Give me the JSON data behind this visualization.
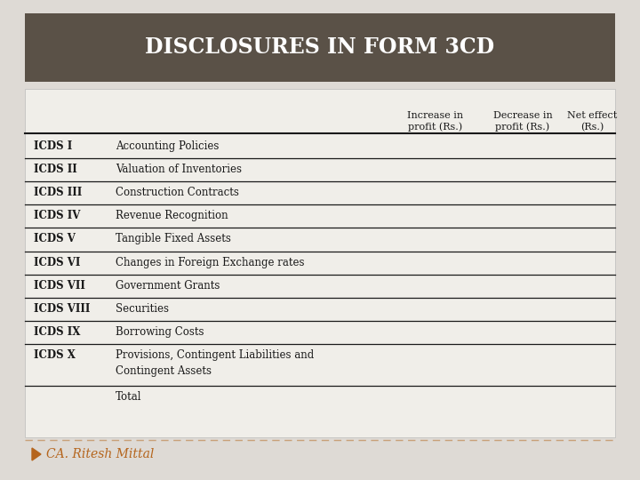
{
  "title": "DISCLOSURES IN FORM 3CD",
  "title_bg": "#5a5147",
  "title_color": "#ffffff",
  "bg_color": "#dedad5",
  "table_bg": "#f0eee9",
  "col_headers": [
    "Increase in\nprofit (Rs.)",
    "Decrease in\nprofit (Rs.)",
    "Net effect\n(Rs.)"
  ],
  "rows": [
    [
      "ICDS I",
      "Accounting Policies"
    ],
    [
      "ICDS II",
      "Valuation of Inventories"
    ],
    [
      "ICDS III",
      "Construction Contracts"
    ],
    [
      "ICDS IV",
      "Revenue Recognition"
    ],
    [
      "ICDS V",
      "Tangible Fixed Assets"
    ],
    [
      "ICDS VI",
      "Changes in Foreign Exchange rates"
    ],
    [
      "ICDS VII",
      "Government Grants"
    ],
    [
      "ICDS VIII",
      "Securities"
    ],
    [
      "ICDS IX",
      "Borrowing Costs"
    ],
    [
      "ICDS X",
      "Provisions, Contingent Liabilities and\nContingent Assets"
    ],
    [
      "",
      "Total"
    ]
  ],
  "footer_text": "CA. Ritesh Mittal",
  "footer_color": "#b5651d",
  "footer_dash_color": "#c8a078",
  "line_color": "#1a1a1a",
  "title_fontsize": 17,
  "header_fontsize": 8,
  "row_fontsize": 8.5
}
